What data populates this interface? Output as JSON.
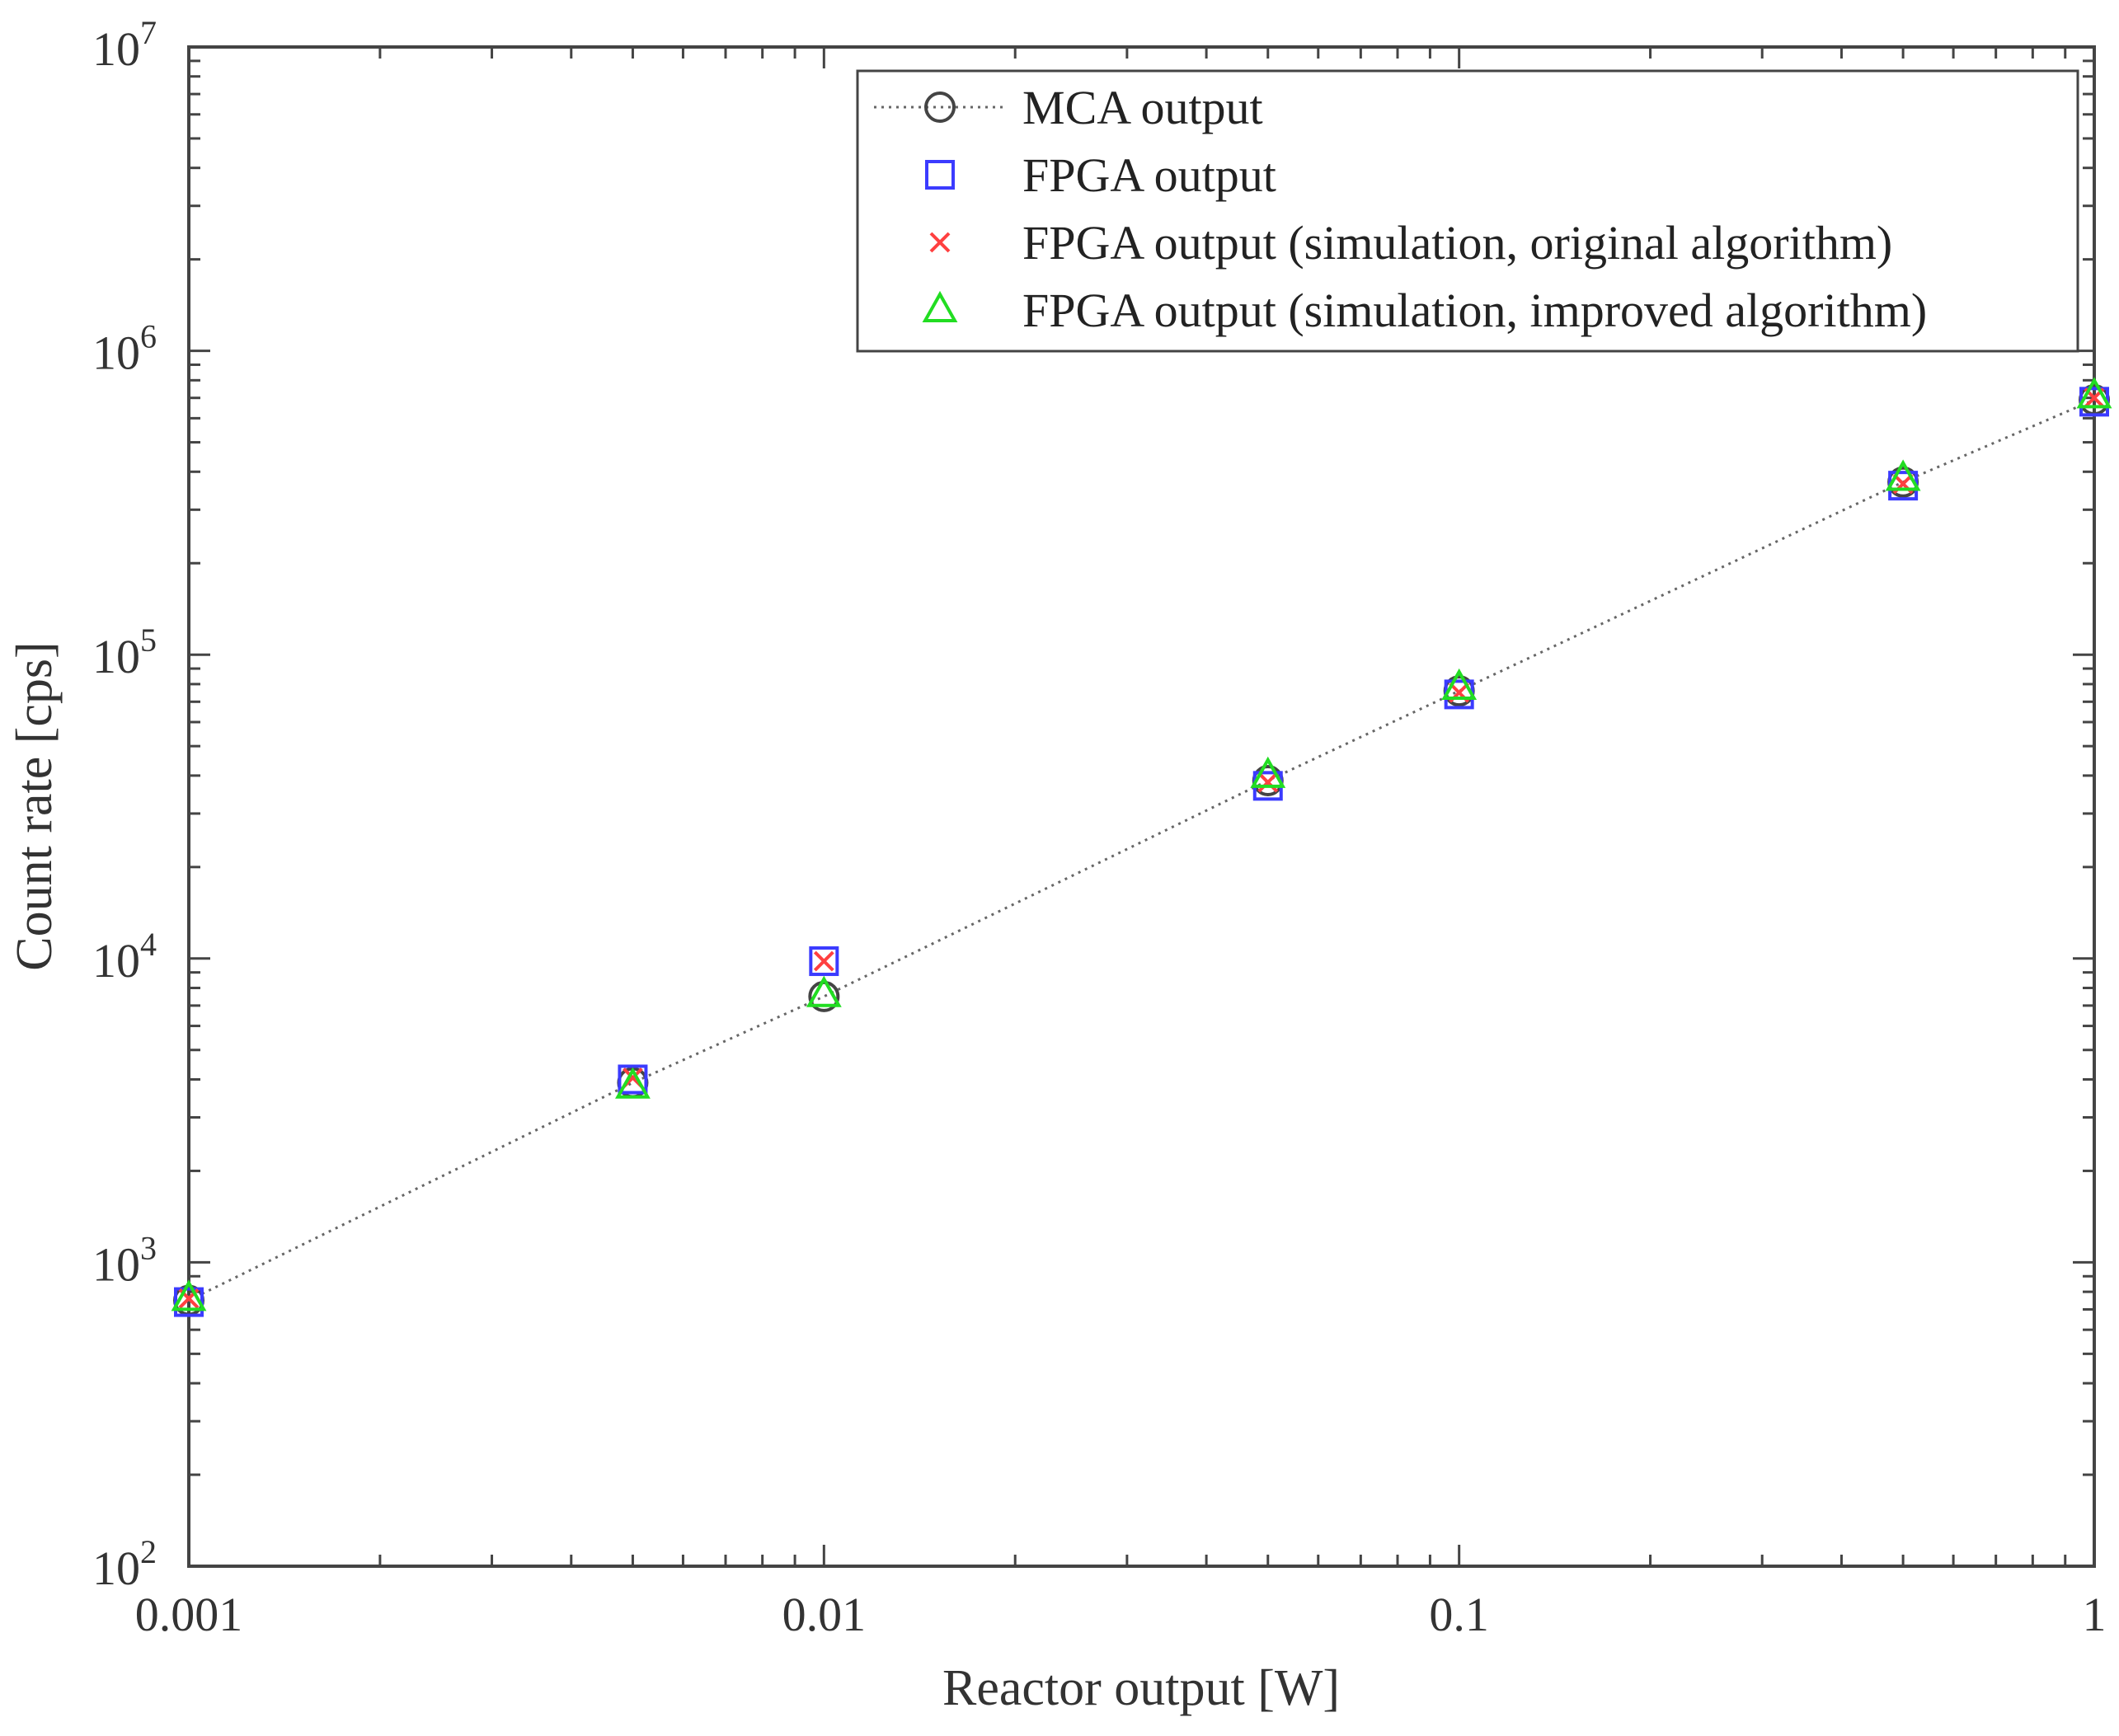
{
  "chart_data": {
    "type": "scatter",
    "title": "",
    "xlabel": "Reactor output [W]",
    "ylabel": "Count rate [cps]",
    "xscale": "log",
    "yscale": "log",
    "xlim": [
      0.001,
      1
    ],
    "ylim": [
      100,
      10000000
    ],
    "x_ticks": [
      {
        "value": 0.001,
        "label": "0.001"
      },
      {
        "value": 0.01,
        "label": "0.01"
      },
      {
        "value": 0.1,
        "label": "0.1"
      },
      {
        "value": 1,
        "label": "1"
      }
    ],
    "y_ticks": [
      {
        "value": 100,
        "base": "10",
        "exp": "2"
      },
      {
        "value": 1000,
        "base": "10",
        "exp": "3"
      },
      {
        "value": 10000,
        "base": "10",
        "exp": "4"
      },
      {
        "value": 100000,
        "base": "10",
        "exp": "5"
      },
      {
        "value": 1000000,
        "base": "10",
        "exp": "6"
      },
      {
        "value": 10000000,
        "base": "10",
        "exp": "7"
      }
    ],
    "legend_position": "top-right",
    "series": [
      {
        "name": "MCA output",
        "marker": "circle",
        "line": "dotted",
        "color": "#444444",
        "x": [
          0.001,
          0.005,
          0.01,
          0.05,
          0.1,
          0.5,
          1
        ],
        "y": [
          750,
          3900,
          7500,
          38500,
          76000,
          370000,
          690000
        ]
      },
      {
        "name": "FPGA output",
        "marker": "square",
        "line": "none",
        "color": "#3b3bff",
        "x": [
          0.001,
          0.005,
          0.01,
          0.05,
          0.1,
          0.5,
          1
        ],
        "y": [
          740,
          4000,
          9800,
          37000,
          74000,
          360000,
          680000
        ]
      },
      {
        "name": "FPGA output (simulation, original algorithm)",
        "marker": "x",
        "line": "none",
        "color": "#ff4040",
        "x": [
          0.001,
          0.005,
          0.01,
          0.05,
          0.1,
          0.5,
          1
        ],
        "y": [
          760,
          4050,
          9800,
          38000,
          75000,
          365000,
          700000
        ]
      },
      {
        "name": "FPGA output (simulation, improved algorithm)",
        "marker": "triangle",
        "line": "none",
        "color": "#22dd22",
        "x": [
          0.001,
          0.005,
          0.01,
          0.05,
          0.1,
          0.5,
          1
        ],
        "y": [
          760,
          3800,
          7600,
          40000,
          78000,
          380000,
          710000
        ]
      }
    ]
  }
}
